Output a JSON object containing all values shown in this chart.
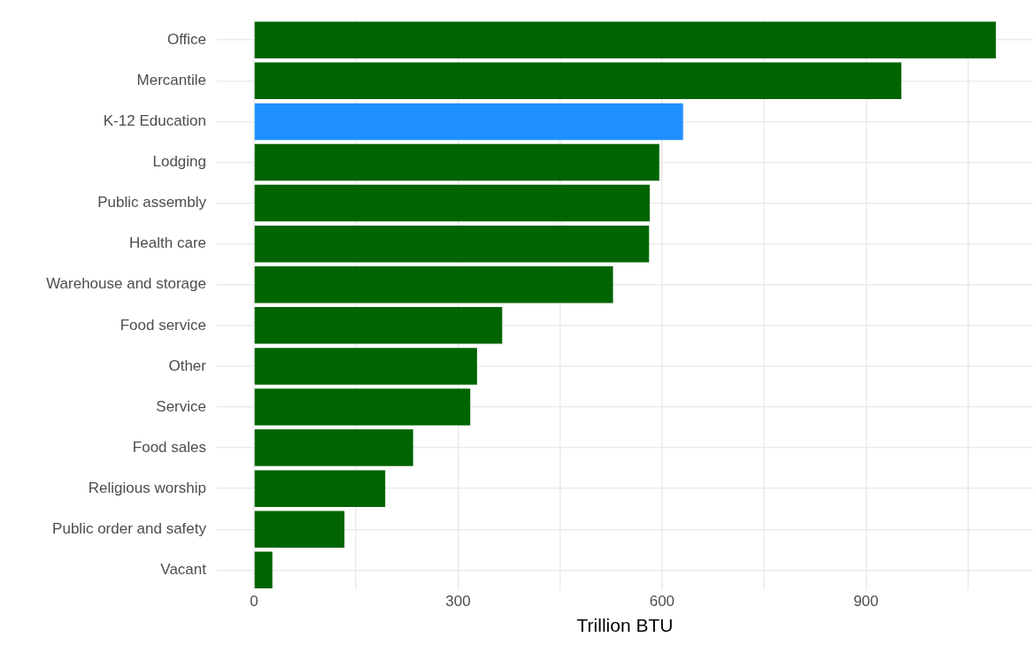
{
  "chart_data": {
    "type": "bar",
    "orientation": "horizontal",
    "xlabel": "Trillion BTU",
    "categories": [
      "Office",
      "Mercantile",
      "K-12 Education",
      "Lodging",
      "Public assembly",
      "Health care",
      "Warehouse and storage",
      "Food service",
      "Other",
      "Service",
      "Food sales",
      "Religious worship",
      "Public order and safety",
      "Vacant"
    ],
    "values": [
      1091,
      952,
      631,
      596,
      582,
      581,
      528,
      365,
      328,
      318,
      234,
      193,
      133,
      27
    ],
    "colors": [
      "#006400",
      "#006400",
      "#1e90ff",
      "#006400",
      "#006400",
      "#006400",
      "#006400",
      "#006400",
      "#006400",
      "#006400",
      "#006400",
      "#006400",
      "#006400",
      "#006400"
    ],
    "xlim": [
      -54.6,
      1145.6
    ],
    "xticks": [
      0,
      {
        "value": 150,
        "label": null
      },
      300,
      {
        "value": 450,
        "label": null
      },
      600,
      {
        "value": 750,
        "label": null
      },
      900,
      {
        "value": 1050,
        "label": null
      }
    ],
    "grid": true,
    "legend": false
  }
}
